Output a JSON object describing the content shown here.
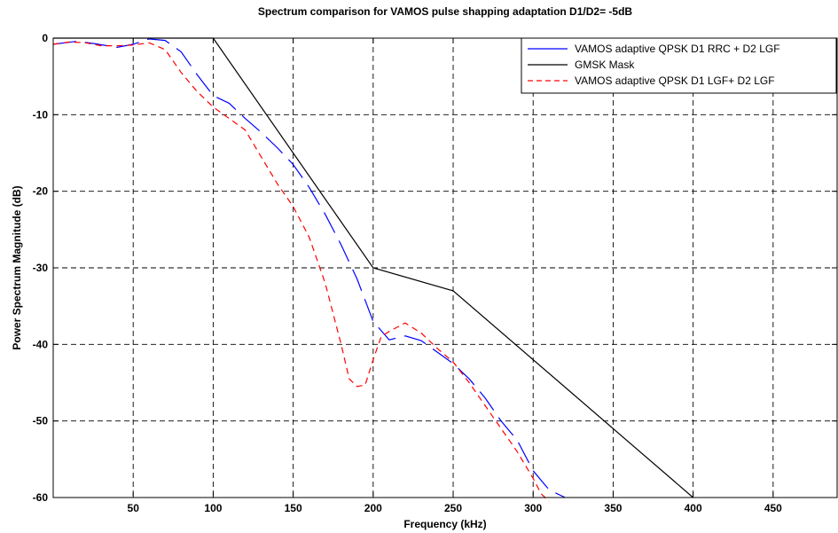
{
  "chart_data": {
    "type": "line",
    "title": "Spectrum comparison for VAMOS pulse shapping adaptation D1/D2= -5dB",
    "xlabel": "Frequency (kHz)",
    "ylabel": "Power Spectrum Magnitude (dB)",
    "xlim": [
      0,
      490
    ],
    "ylim": [
      -60,
      0
    ],
    "xticks": [
      50,
      100,
      150,
      200,
      250,
      300,
      350,
      400,
      450
    ],
    "yticks": [
      0,
      -10,
      -20,
      -30,
      -40,
      -50,
      -60
    ],
    "grid": true,
    "legend_position": "top-right",
    "series": [
      {
        "name": "VAMOS adaptive QPSK D1 RRC + D2 LGF",
        "color": "#0000ff",
        "style": "dashdot",
        "x": [
          0,
          15,
          25,
          40,
          50,
          60,
          70,
          80,
          90,
          100,
          110,
          120,
          130,
          140,
          150,
          160,
          170,
          180,
          190,
          200,
          210,
          220,
          230,
          240,
          250,
          260,
          270,
          280,
          290,
          300,
          310,
          320
        ],
        "y": [
          -0.8,
          -0.4,
          -0.7,
          -1.2,
          -0.8,
          -0.1,
          -0.3,
          -1.8,
          -4.8,
          -7.5,
          -8.5,
          -10.5,
          -12.3,
          -14.3,
          -16.5,
          -19.5,
          -23.0,
          -27.0,
          -31.5,
          -37.0,
          -39.4,
          -38.9,
          -39.5,
          -41.0,
          -42.5,
          -44.5,
          -47.0,
          -50.0,
          -52.5,
          -56.5,
          -59.0,
          -60.0
        ]
      },
      {
        "name": "GMSK Mask",
        "color": "#000000",
        "style": "solid",
        "x": [
          0,
          100,
          200,
          250,
          400
        ],
        "y": [
          0,
          0,
          -30,
          -33,
          -60
        ]
      },
      {
        "name": "VAMOS adaptive QPSK D1 LGF+ D2 LGF",
        "color": "#ff0000",
        "style": "dashed",
        "x": [
          0,
          10,
          20,
          30,
          40,
          50,
          60,
          70,
          80,
          90,
          100,
          110,
          120,
          130,
          140,
          150,
          160,
          170,
          180,
          185,
          190,
          195,
          200,
          205,
          210,
          220,
          230,
          240,
          250,
          260,
          270,
          280,
          290,
          300,
          305,
          310
        ],
        "y": [
          -0.8,
          -0.5,
          -0.6,
          -1.0,
          -1.0,
          -0.9,
          -0.6,
          -1.5,
          -4.5,
          -7.0,
          -9.0,
          -10.5,
          -12.0,
          -15.5,
          -19.0,
          -22.0,
          -26.0,
          -32.0,
          -40.0,
          -44.5,
          -45.5,
          -45.3,
          -42.0,
          -39.0,
          -38.3,
          -37.2,
          -38.5,
          -40.5,
          -42.3,
          -45.0,
          -48.0,
          -51.0,
          -54.0,
          -57.5,
          -59.5,
          -60.5
        ]
      }
    ]
  }
}
